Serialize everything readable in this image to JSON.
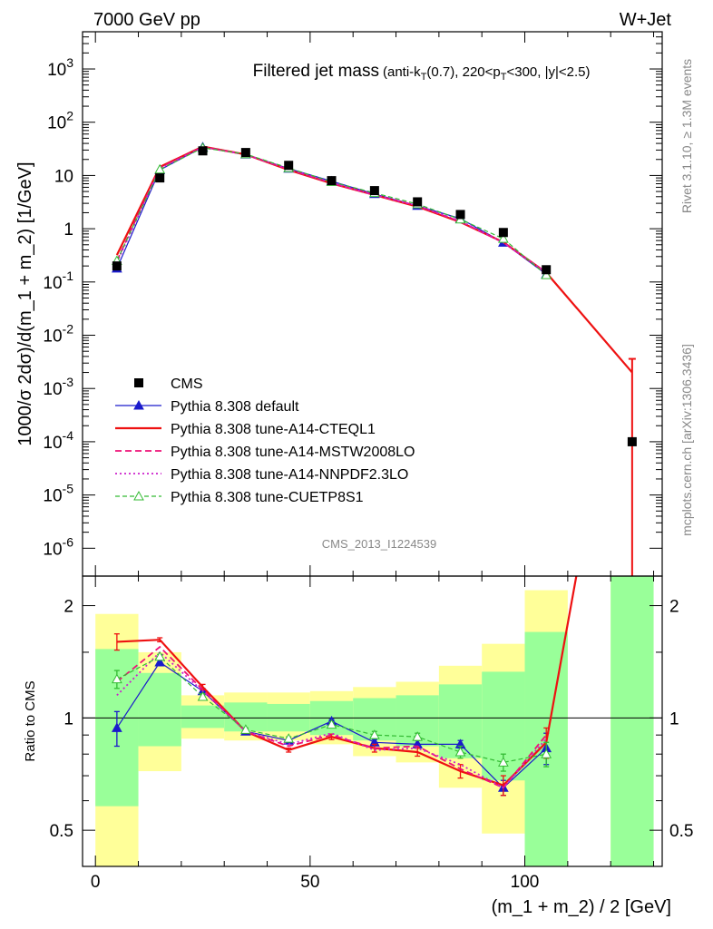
{
  "header": {
    "left": "7000 GeV pp",
    "right": "W+Jet"
  },
  "side_labels": {
    "rivet": "Rivet 3.1.10, ≥ 1.3M events",
    "mcplots": "mcplots.cern.ch [arXiv:1306.3436]"
  },
  "watermark": "CMS_2013_I1224539",
  "colors": {
    "cms": "#000000",
    "default": "#1a1acc",
    "cteql1": "#ee1111",
    "mstw": "#ee1177",
    "nnpdf": "#cc22cc",
    "cuetp8s1": "#33bb33",
    "band_outer": "#ffff99",
    "band_inner": "#99ff99"
  },
  "chart_data": [
    {
      "type": "line",
      "title": "Filtered jet mass",
      "title_suffix": {
        "a": "(anti-k",
        "a_sub": "T",
        "b": "(0.7), 220<p",
        "b_sub": "T",
        "c": "<300, |y|<2.5)"
      },
      "ylabel": "1000/σ 2dσ)/d(m_1 + m_2) [1/GeV]",
      "yscale": "log",
      "ylim": [
        3e-07,
        5000
      ],
      "xlim": [
        -3,
        132
      ],
      "x_ticks": [
        0,
        50,
        100
      ],
      "y_ticks": [
        {
          "v": 1e-06,
          "b": "10",
          "e": "-6"
        },
        {
          "v": 1e-05,
          "b": "10",
          "e": "-5"
        },
        {
          "v": 0.0001,
          "b": "10",
          "e": "-4"
        },
        {
          "v": 0.001,
          "b": "10",
          "e": "-3"
        },
        {
          "v": 0.01,
          "b": "10",
          "e": "-2"
        },
        {
          "v": 0.1,
          "b": "10",
          "e": "-1"
        },
        {
          "v": 1,
          "b": "1",
          "e": ""
        },
        {
          "v": 10,
          "b": "10",
          "e": ""
        },
        {
          "v": 100,
          "b": "10",
          "e": "2"
        },
        {
          "v": 1000,
          "b": "10",
          "e": "3"
        }
      ],
      "bins": [
        [
          0,
          10
        ],
        [
          10,
          20
        ],
        [
          20,
          30
        ],
        [
          30,
          40
        ],
        [
          40,
          50
        ],
        [
          50,
          60
        ],
        [
          60,
          70
        ],
        [
          70,
          80
        ],
        [
          80,
          90
        ],
        [
          90,
          100
        ],
        [
          100,
          110
        ],
        [
          120,
          130
        ]
      ],
      "legend": [
        {
          "label": "CMS",
          "key": "cms"
        },
        {
          "label": "Pythia 8.308 default",
          "key": "default"
        },
        {
          "label": "Pythia 8.308 tune-A14-CTEQL1",
          "key": "cteql1"
        },
        {
          "label": "Pythia 8.308 tune-A14-MSTW2008LO",
          "key": "mstw"
        },
        {
          "label": "Pythia 8.308 tune-A14-NNPDF2.3LO",
          "key": "nnpdf"
        },
        {
          "label": "Pythia 8.308 tune-CUETP8S1",
          "key": "cuetp8s1"
        }
      ],
      "series": [
        {
          "key": "cms",
          "name": "CMS",
          "style": "square",
          "x": [
            5,
            15,
            25,
            35,
            45,
            55,
            65,
            75,
            85,
            95,
            105,
            125
          ],
          "y": [
            0.2,
            9,
            29,
            27,
            15.5,
            8,
            5.2,
            3.2,
            1.85,
            0.85,
            0.17,
            0.0001
          ]
        },
        {
          "key": "default",
          "name": "Pythia 8.308 default",
          "style": "solid",
          "marker": "triangle",
          "x": [
            5,
            15,
            25,
            35,
            45,
            55,
            65,
            75,
            85,
            95,
            105
          ],
          "y": [
            0.18,
            12.7,
            34,
            25,
            13.5,
            7.8,
            4.5,
            2.7,
            1.55,
            0.55,
            0.14
          ]
        },
        {
          "key": "cteql1",
          "name": "Pythia 8.308 tune-A14-CTEQL1",
          "style": "solid",
          "x": [
            5,
            15,
            25,
            35,
            45,
            55,
            65,
            75,
            85,
            95,
            105,
            125
          ],
          "y": [
            0.32,
            14.5,
            35,
            24.8,
            12.7,
            7.1,
            4.3,
            2.6,
            1.33,
            0.56,
            0.15,
            0.002
          ],
          "yerr": [
            [
              125,
              0.0016
            ]
          ]
        },
        {
          "key": "mstw",
          "name": "Pythia 8.308 tune-A14-MSTW2008LO",
          "style": "dashed",
          "x": [
            5,
            15,
            25,
            35,
            45,
            55,
            65,
            75,
            85,
            95,
            105
          ],
          "y": [
            0.25,
            14,
            34.5,
            24.7,
            13,
            7.2,
            4.3,
            2.7,
            1.35,
            0.55,
            0.15
          ]
        },
        {
          "key": "nnpdf",
          "name": "Pythia 8.308 tune-A14-NNPDF2.3LO",
          "style": "dotted",
          "x": [
            5,
            15,
            25,
            35,
            45,
            55,
            65,
            75,
            85,
            95,
            105
          ],
          "y": [
            0.23,
            13.5,
            34,
            24.8,
            13.2,
            7.3,
            4.3,
            2.7,
            1.4,
            0.55,
            0.15
          ]
        },
        {
          "key": "cuetp8s1",
          "name": "Pythia 8.308 tune-CUETP8S1",
          "style": "dashed-fine",
          "marker": "open-triangle",
          "x": [
            5,
            15,
            25,
            35,
            45,
            55,
            65,
            75,
            85,
            95,
            105
          ],
          "y": [
            0.25,
            13,
            33,
            25.2,
            13.8,
            7.6,
            4.7,
            2.9,
            1.5,
            0.65,
            0.135
          ]
        }
      ]
    },
    {
      "type": "line",
      "ylabel": "Ratio to CMS",
      "xlabel": "(m_1 + m_2) / 2 [GeV]",
      "yscale": "log",
      "ylim": [
        0.4,
        2.4
      ],
      "xlim": [
        -3,
        132
      ],
      "x_ticks": [
        0,
        50,
        100
      ],
      "y_ticks": [
        0.5,
        1,
        2
      ],
      "reference_line": 1,
      "bands": [
        {
          "x0": 0,
          "x1": 10,
          "outer": [
            0.4,
            1.9
          ],
          "inner": [
            0.58,
            1.53
          ]
        },
        {
          "x0": 10,
          "x1": 20,
          "outer": [
            0.72,
            1.5
          ],
          "inner": [
            0.84,
            1.32
          ]
        },
        {
          "x0": 20,
          "x1": 30,
          "outer": [
            0.88,
            1.15
          ],
          "inner": [
            0.94,
            1.08
          ]
        },
        {
          "x0": 30,
          "x1": 40,
          "outer": [
            0.87,
            1.17
          ],
          "inner": [
            0.92,
            1.1
          ]
        },
        {
          "x0": 40,
          "x1": 50,
          "outer": [
            0.87,
            1.17
          ],
          "inner": [
            0.92,
            1.09
          ]
        },
        {
          "x0": 50,
          "x1": 60,
          "outer": [
            0.85,
            1.18
          ],
          "inner": [
            0.9,
            1.11
          ]
        },
        {
          "x0": 60,
          "x1": 70,
          "outer": [
            0.79,
            1.21
          ],
          "inner": [
            0.87,
            1.13
          ]
        },
        {
          "x0": 70,
          "x1": 80,
          "outer": [
            0.76,
            1.25
          ],
          "inner": [
            0.84,
            1.15
          ]
        },
        {
          "x0": 80,
          "x1": 90,
          "outer": [
            0.65,
            1.38
          ],
          "inner": [
            0.78,
            1.23
          ]
        },
        {
          "x0": 90,
          "x1": 100,
          "outer": [
            0.49,
            1.58
          ],
          "inner": [
            0.68,
            1.33
          ]
        },
        {
          "x0": 100,
          "x1": 110,
          "outer": [
            0.4,
            2.2
          ],
          "inner": [
            0.4,
            1.7
          ]
        },
        {
          "x0": 120,
          "x1": 130,
          "outer": [
            0.4,
            2.4
          ],
          "inner": [
            0.4,
            2.4
          ]
        }
      ],
      "series": [
        {
          "key": "default",
          "name": "Pythia 8.308 default",
          "style": "solid",
          "marker": "triangle",
          "x": [
            5,
            15,
            25,
            35,
            45,
            55,
            65,
            75,
            85,
            95,
            105
          ],
          "y": [
            0.94,
            1.41,
            1.18,
            0.92,
            0.87,
            0.98,
            0.86,
            0.85,
            0.85,
            0.65,
            0.83
          ],
          "err": [
            0.1,
            0.02,
            0.02,
            0.01,
            0.01,
            0.01,
            0.015,
            0.02,
            0.02,
            0.03,
            0.08
          ]
        },
        {
          "key": "cteql1",
          "name": "Pythia 8.308 tune-A14-CTEQL1",
          "style": "solid",
          "x": [
            5,
            15,
            25,
            35,
            45,
            55,
            65,
            75,
            85,
            95,
            105,
            112
          ],
          "y": [
            1.6,
            1.62,
            1.21,
            0.92,
            0.82,
            0.89,
            0.83,
            0.81,
            0.72,
            0.66,
            0.86,
            2.4
          ],
          "err": [
            0.08,
            0.02,
            0.02,
            0.01,
            0.01,
            0.015,
            0.02,
            0.02,
            0.03,
            0.04,
            0.08,
            0
          ]
        },
        {
          "key": "mstw",
          "name": "Pythia 8.308 tune-A14-MSTW2008LO",
          "style": "dashed",
          "x": [
            5,
            15,
            25,
            35,
            45,
            55,
            65,
            75,
            85,
            95,
            105
          ],
          "y": [
            1.25,
            1.55,
            1.19,
            0.92,
            0.84,
            0.9,
            0.83,
            0.84,
            0.73,
            0.65,
            0.9
          ]
        },
        {
          "key": "nnpdf",
          "name": "Pythia 8.308 tune-A14-NNPDF2.3LO",
          "style": "dotted",
          "x": [
            5,
            15,
            25,
            35,
            45,
            55,
            65,
            75,
            85,
            95,
            105
          ],
          "y": [
            1.15,
            1.5,
            1.18,
            0.92,
            0.85,
            0.91,
            0.82,
            0.83,
            0.75,
            0.65,
            0.88
          ]
        },
        {
          "key": "cuetp8s1",
          "name": "Pythia 8.308 tune-CUETP8S1",
          "style": "dashed-fine",
          "marker": "open-triangle",
          "x": [
            5,
            15,
            25,
            35,
            45,
            55,
            65,
            75,
            85,
            95,
            105
          ],
          "y": [
            1.27,
            1.46,
            1.14,
            0.93,
            0.88,
            0.96,
            0.9,
            0.89,
            0.81,
            0.76,
            0.8
          ],
          "err": [
            0.07,
            0.02,
            0.02,
            0.01,
            0.01,
            0.015,
            0.02,
            0.02,
            0.03,
            0.04,
            0.06
          ]
        }
      ]
    }
  ]
}
